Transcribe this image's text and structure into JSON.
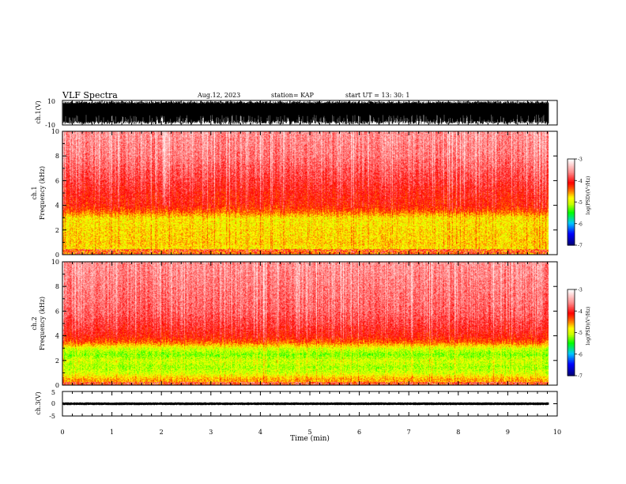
{
  "header": {
    "title": "VLF Spectra",
    "date": "Aug.12, 2023",
    "station": "station= KAP",
    "start": "start  UT =   13: 30: 1"
  },
  "colors": {
    "palette": [
      "#000080",
      "#0000ff",
      "#00c8ff",
      "#00ff00",
      "#c8ff00",
      "#ffff00",
      "#ff8000",
      "#ff0000",
      "#ff8080",
      "#ffffff"
    ],
    "trace": "#000000",
    "background": "#ffffff"
  },
  "chart_data": [
    {
      "type": "line",
      "id": "ch1_waveform",
      "ylabel": "ch.1(V)",
      "yticks": [
        "-10",
        "10"
      ],
      "ylim": [
        -10,
        10
      ],
      "xlim": [
        0,
        10
      ],
      "data_end_min": 9.83,
      "notes": "dense broadband waveform filling the full vertical range"
    },
    {
      "type": "heatmap",
      "id": "ch1_spectrogram",
      "ylabel_channel": "ch.1",
      "ylabel": "Frequency  (kHz)",
      "yticks": [
        "0",
        "2",
        "4",
        "6",
        "8",
        "10"
      ],
      "ylim": [
        0,
        10
      ],
      "xlim": [
        0,
        10
      ],
      "data_end_min": 9.83,
      "colorbar": {
        "label": "log(PSD)(V²/Hz)",
        "ticks": [
          "-3",
          "-4",
          "-5",
          "-6",
          "-7"
        ],
        "range": [
          -7,
          -3
        ]
      },
      "profile_khz": [
        0.5,
        1.0,
        1.5,
        2.0,
        2.5,
        3.0,
        3.5,
        4.0,
        5.0,
        6.0,
        8.0,
        10.0
      ],
      "profile_level": [
        -4.8,
        -4.7,
        -4.75,
        -4.75,
        -4.8,
        -4.8,
        -4.4,
        -4.15,
        -4.05,
        -3.9,
        -3.65,
        -3.55
      ],
      "dark_gap_khz": [
        0.0,
        0.5
      ],
      "bright_gap_min": [
        2.02,
        2.12
      ]
    },
    {
      "type": "heatmap",
      "id": "ch2_spectrogram",
      "ylabel_channel": "ch.2",
      "ylabel": "Frequency  (kHz)",
      "yticks": [
        "0",
        "2",
        "4",
        "6",
        "8",
        "10"
      ],
      "ylim": [
        0,
        10
      ],
      "xlim": [
        0,
        10
      ],
      "data_end_min": 9.83,
      "colorbar": {
        "label": "log(PSD)(V²/Hz)",
        "ticks": [
          "-3",
          "-4",
          "-5",
          "-6",
          "-7"
        ],
        "range": [
          -7,
          -3
        ]
      },
      "profile_khz": [
        0.5,
        1.0,
        1.5,
        2.0,
        2.5,
        3.0,
        3.5,
        4.0,
        5.0,
        6.0,
        8.0,
        10.0
      ],
      "profile_level": [
        -4.6,
        -5.0,
        -5.15,
        -5.0,
        -5.25,
        -5.0,
        -4.4,
        -4.1,
        -3.9,
        -3.75,
        -3.65,
        -3.55
      ],
      "dark_gap_khz": [
        0.0,
        0.3
      ]
    },
    {
      "type": "line",
      "id": "ch3_waveform",
      "ylabel": "ch.3(V)",
      "yticks": [
        "5",
        "0",
        "-5"
      ],
      "ylim": [
        -5,
        5
      ],
      "xlim": [
        0,
        10
      ],
      "data_end_min": 9.83,
      "band": [
        -0.4,
        0.4
      ],
      "notes": "narrow band around 0 V"
    }
  ],
  "xaxis": {
    "label": "Time  (min)",
    "ticks": [
      "0",
      "1",
      "2",
      "3",
      "4",
      "5",
      "6",
      "7",
      "8",
      "9",
      "10"
    ],
    "range": [
      0,
      10
    ]
  }
}
